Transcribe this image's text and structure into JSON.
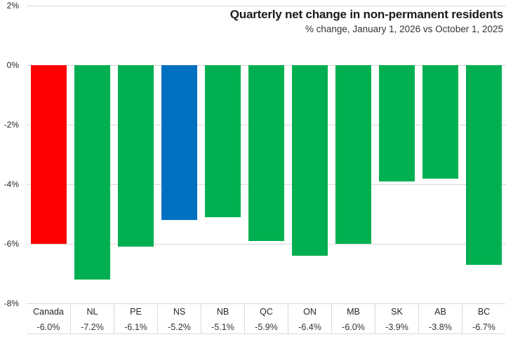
{
  "chart_data": {
    "type": "bar",
    "title": "Quarterly net change in non-permanent residents",
    "subtitle": "% change, January 1, 2026 vs October 1, 2025",
    "xlabel": "",
    "ylabel": "",
    "categories": [
      "Canada",
      "NL",
      "PE",
      "NS",
      "NB",
      "QC",
      "ON",
      "MB",
      "SK",
      "AB",
      "BC"
    ],
    "values": [
      -6.0,
      -7.2,
      -6.1,
      -5.2,
      -5.1,
      -5.9,
      -6.4,
      -6.0,
      -3.9,
      -3.8,
      -6.7
    ],
    "value_labels": [
      "-6.0%",
      "-7.2%",
      "-6.1%",
      "-5.2%",
      "-5.1%",
      "-5.9%",
      "-6.4%",
      "-6.0%",
      "-3.9%",
      "-3.8%",
      "-6.7%"
    ],
    "colors": [
      "#ff0000",
      "#00b050",
      "#00b050",
      "#0070c0",
      "#00b050",
      "#00b050",
      "#00b050",
      "#00b050",
      "#00b050",
      "#00b050",
      "#00b050"
    ],
    "color_roles": {
      "canada": "#ff0000",
      "highlighted_province": "#0070c0",
      "default_province": "#00b050"
    },
    "yticks": [
      "2%",
      "0%",
      "-2%",
      "-4%",
      "-6%",
      "-8%"
    ],
    "ylim": [
      -8,
      2
    ],
    "grid": "horizontal",
    "gridline_color": "#d9d9d9",
    "legend": "none"
  }
}
